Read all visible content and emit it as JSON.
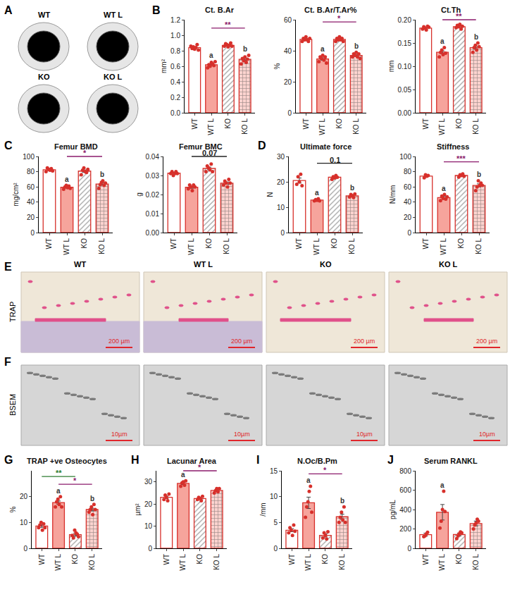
{
  "chart_data": [
    {
      "panel_label": "B",
      "type": "bar",
      "title": "Ct. B.Ar",
      "y_label": "mm²",
      "categories": [
        "WT",
        "WT L",
        "KO",
        "KO L"
      ],
      "values": [
        0.84,
        0.62,
        0.87,
        0.69
      ],
      "errors": [
        0.01,
        0.01,
        0.01,
        0.015
      ],
      "points": [
        [
          0.86,
          0.83,
          0.85,
          0.82,
          0.84,
          0.88,
          0.81
        ],
        [
          0.58,
          0.62,
          0.6,
          0.65,
          0.63,
          0.61,
          0.66
        ],
        [
          0.86,
          0.89,
          0.88,
          0.85,
          0.87,
          0.9,
          0.86
        ],
        [
          0.63,
          0.7,
          0.67,
          0.72,
          0.65,
          0.69,
          0.74
        ]
      ],
      "colors": [
        "#ffffff",
        "#f6a49c",
        "#ffffff",
        "#fbd3cf"
      ],
      "color": "#d7302b",
      "ylim": [
        0,
        1.2
      ],
      "yticks": [
        {
          "value": 0,
          "label": "0.0"
        },
        {
          "value": 0.2,
          "label": "0.2"
        },
        {
          "value": 0.4,
          "label": "0.4"
        },
        {
          "value": 0.6,
          "label": "0.6"
        },
        {
          "value": 0.8,
          "label": "0.8"
        },
        {
          "value": 1.0,
          "label": "1.0"
        },
        {
          "value": 1.2,
          "label": "1.2"
        }
      ],
      "letters": [
        null,
        "a",
        null,
        "b"
      ],
      "comparisons": [
        {
          "from": 1,
          "to": 3,
          "label": "**",
          "color": "#8b1a6b"
        }
      ]
    },
    {
      "type": "bar",
      "title": "Ct. B.Ar/T.Ar%",
      "y_label": "%",
      "categories": [
        "WT",
        "WT L",
        "KO",
        "KO L"
      ],
      "values": [
        47.3,
        34.7,
        47.3,
        37
      ],
      "errors": [
        0.5,
        0.8,
        0.5,
        0.6
      ],
      "points": [
        [
          46,
          48,
          47,
          49,
          47,
          46,
          48
        ],
        [
          33,
          36,
          35,
          37,
          34,
          36,
          32
        ],
        [
          46,
          48,
          47,
          49,
          47,
          48,
          46
        ],
        [
          36,
          38,
          37,
          39,
          36,
          38,
          35
        ]
      ],
      "colors": [
        "#ffffff",
        "#f6a49c",
        "#ffffff",
        "#fbd3cf"
      ],
      "color": "#d7302b",
      "ylim": [
        0,
        60
      ],
      "yticks": [
        0,
        20,
        40,
        60
      ],
      "letters": [
        null,
        "a",
        null,
        "b"
      ],
      "comparisons": [
        {
          "from": 1,
          "to": 3,
          "label": "*",
          "color": "#8b1a6b"
        }
      ]
    },
    {
      "type": "bar",
      "title": "Ct.Th",
      "y_label": "mm",
      "categories": [
        "WT",
        "WT L",
        "KO",
        "KO L"
      ],
      "values": [
        0.182,
        0.13,
        0.185,
        0.14
      ],
      "errors": [
        0.002,
        0.003,
        0.002,
        0.003
      ],
      "points": [
        [
          0.18,
          0.185,
          0.182,
          0.178,
          0.186,
          0.184
        ],
        [
          0.12,
          0.13,
          0.135,
          0.125,
          0.14,
          0.128
        ],
        [
          0.183,
          0.188,
          0.185,
          0.19,
          0.18,
          0.186
        ],
        [
          0.13,
          0.14,
          0.145,
          0.135,
          0.15,
          0.142
        ]
      ],
      "colors": [
        "#ffffff",
        "#f6a49c",
        "#ffffff",
        "#fbd3cf"
      ],
      "color": "#d7302b",
      "ylim": [
        0,
        0.2
      ],
      "yticks": [
        {
          "value": 0,
          "label": "0.00"
        },
        {
          "value": 0.05,
          "label": "0.05"
        },
        {
          "value": 0.1,
          "label": "0.10"
        },
        {
          "value": 0.15,
          "label": "0.15"
        },
        {
          "value": 0.2,
          "label": "0.20"
        }
      ],
      "letters": [
        null,
        "a",
        null,
        "b"
      ],
      "comparisons": [
        {
          "from": 1,
          "to": 3,
          "label": "**",
          "color": "#8b1a6b"
        }
      ]
    },
    {
      "panel_label": "C",
      "type": "bar",
      "title": "Femur BMD",
      "y_label": "mg/cm²",
      "categories": [
        "WT",
        "WT L",
        "KO",
        "KO L"
      ],
      "values": [
        82.5,
        59.5,
        80.8,
        63.7
      ],
      "errors": [
        1,
        1,
        1.5,
        1.5
      ],
      "points": [
        [
          80,
          85,
          83,
          82,
          84,
          81
        ],
        [
          57,
          60,
          62,
          59,
          61,
          58
        ],
        [
          76,
          82,
          85,
          80,
          79,
          83
        ],
        [
          58,
          63,
          66,
          68,
          62,
          65
        ]
      ],
      "colors": [
        "#ffffff",
        "#f6a49c",
        "#ffffff",
        "#fbd3cf"
      ],
      "color": "#d7302b",
      "ylim": [
        0,
        100
      ],
      "yticks": [
        0,
        20,
        40,
        60,
        80,
        100
      ],
      "letters": [
        null,
        "a",
        null,
        "b"
      ],
      "comparisons": [
        {
          "from": 1,
          "to": 3,
          "label": "*",
          "color": "#8b1a6b"
        }
      ]
    },
    {
      "type": "bar",
      "title": "Femur BMC",
      "y_label": "g",
      "categories": [
        "WT",
        "WT L",
        "KO",
        "KO L"
      ],
      "values": [
        0.0312,
        0.0238,
        0.0337,
        0.026
      ],
      "errors": [
        0.0005,
        0.0005,
        0.0007,
        0.0006
      ],
      "points": [
        [
          0.031,
          0.032,
          0.03,
          0.031,
          0.032,
          0.031
        ],
        [
          0.023,
          0.025,
          0.024,
          0.022,
          0.025,
          0.024
        ],
        [
          0.032,
          0.035,
          0.034,
          0.033,
          0.036,
          0.032
        ],
        [
          0.025,
          0.027,
          0.026,
          0.024,
          0.028,
          0.026
        ]
      ],
      "colors": [
        "#ffffff",
        "#f6a49c",
        "#ffffff",
        "#fbd3cf"
      ],
      "color": "#d7302b",
      "ylim": [
        0,
        0.04
      ],
      "yticks": [
        {
          "value": 0,
          "label": "0.00"
        },
        {
          "value": 0.01,
          "label": "0.01"
        },
        {
          "value": 0.02,
          "label": "0.02"
        },
        {
          "value": 0.03,
          "label": "0.03"
        },
        {
          "value": 0.04,
          "label": "0.04"
        }
      ],
      "letters": [
        null,
        null,
        null,
        null
      ],
      "comparisons": [
        {
          "from": 1,
          "to": 3,
          "label": "0.07",
          "color": "#222222"
        }
      ]
    },
    {
      "panel_label": "D",
      "type": "bar",
      "title": "Ultimate force",
      "y_label": "N",
      "categories": [
        "WT",
        "WT L",
        "KO",
        "KO L"
      ],
      "values": [
        20.5,
        12.8,
        21.8,
        14.5
      ],
      "errors": [
        1,
        0.2,
        0.3,
        0.3
      ],
      "points": [
        [
          19,
          22,
          20,
          23,
          18.5
        ],
        [
          12.5,
          13,
          12.7,
          13.3,
          12.5
        ],
        [
          21,
          22,
          21.5,
          22.5,
          21.8
        ],
        [
          14,
          15,
          14.5,
          13.8,
          15.2
        ]
      ],
      "colors": [
        "#ffffff",
        "#f6a49c",
        "#ffffff",
        "#fbd3cf"
      ],
      "color": "#d7302b",
      "ylim": [
        0,
        30
      ],
      "yticks": [
        0,
        10,
        20,
        30
      ],
      "letters": [
        null,
        "a",
        null,
        "b"
      ],
      "comparisons": [
        {
          "from": 1,
          "to": 3,
          "label": "0.1",
          "color": "#222222"
        }
      ]
    },
    {
      "type": "bar",
      "title": "Stiffness",
      "y_label": "N/mm",
      "categories": [
        "WT",
        "WT L",
        "KO",
        "KO L"
      ],
      "values": [
        74.25,
        46,
        75,
        62
      ],
      "errors": [
        1,
        1.5,
        0.8,
        2
      ],
      "points": [
        [
          72,
          76,
          74,
          75
        ],
        [
          42,
          48,
          45,
          50,
          44,
          47
        ],
        [
          73,
          76,
          75,
          77,
          74
        ],
        [
          55,
          60,
          68,
          62,
          65,
          62
        ]
      ],
      "colors": [
        "#ffffff",
        "#f6a49c",
        "#ffffff",
        "#fbd3cf"
      ],
      "color": "#d7302b",
      "ylim": [
        0,
        100
      ],
      "yticks": [
        0,
        20,
        40,
        60,
        80,
        100
      ],
      "letters": [
        null,
        "a",
        null,
        "b"
      ],
      "comparisons": [
        {
          "from": 1,
          "to": 3,
          "label": "***",
          "color": "#8b1a6b"
        }
      ]
    },
    {
      "panel_label": "G",
      "type": "bar",
      "title": "TRAP +ve Osteocytes",
      "y_label": "%",
      "categories": [
        "WT",
        "WT L",
        "KO",
        "KO L"
      ],
      "values": [
        8.6,
        17.7,
        5.3,
        15
      ],
      "errors": [
        0.5,
        0.6,
        0.5,
        0.5
      ],
      "points": [
        [
          8,
          9,
          10,
          7,
          9.5,
          8
        ],
        [
          16,
          18,
          19,
          17,
          20,
          16
        ],
        [
          5,
          4,
          7,
          6,
          5.5,
          4.5
        ],
        [
          14,
          15,
          16,
          13,
          17,
          15
        ]
      ],
      "colors": [
        "#ffffff",
        "#f6a49c",
        "#ffffff",
        "#fbd3cf"
      ],
      "color": "#d7302b",
      "ylim": [
        0,
        30
      ],
      "yticks": [
        0,
        10,
        20
      ],
      "letters": [
        null,
        "a",
        null,
        "b"
      ],
      "comparisons": [
        {
          "from": 1,
          "to": 3,
          "label": "*",
          "color": "#8b1a6b"
        },
        {
          "from": 0,
          "to": 2,
          "label": "**",
          "color": "#2e7d32"
        }
      ]
    },
    {
      "panel_label": "H",
      "type": "bar",
      "title": "Lacunar Area",
      "y_label": "µm²",
      "categories": [
        "WT",
        "WT L",
        "KO",
        "KO L"
      ],
      "values": [
        23,
        29.3,
        22.5,
        26.1
      ],
      "errors": [
        0.6,
        0.5,
        0.4,
        0.4
      ],
      "points": [
        [
          22,
          24,
          23,
          21.5,
          24.5
        ],
        [
          28,
          29.5,
          30,
          28.5,
          30.5
        ],
        [
          22,
          23,
          22.5,
          21.5,
          23.5
        ],
        [
          25,
          26,
          27,
          25.5,
          27
        ]
      ],
      "colors": [
        "#ffffff",
        "#f6a49c",
        "#ffffff",
        "#fbd3cf"
      ],
      "color": "#d7302b",
      "ylim": [
        0,
        35
      ],
      "yticks": [
        0,
        10,
        20,
        30
      ],
      "letters": [
        null,
        "a",
        null,
        null
      ],
      "comparisons": [
        {
          "from": 1,
          "to": 3,
          "label": "*",
          "color": "#8b1a6b"
        }
      ]
    },
    {
      "panel_label": "I",
      "type": "bar",
      "title": "N.Oc/B.Pm",
      "y_label": "/mm",
      "categories": [
        "WT",
        "WT L",
        "KO",
        "KO L"
      ],
      "values": [
        3.5,
        8.8,
        2.5,
        6.1
      ],
      "errors": [
        0.3,
        1.1,
        0.3,
        0.5
      ],
      "points": [
        [
          3,
          4,
          3.5,
          2.5,
          4.5,
          3.3
        ],
        [
          6,
          8,
          9,
          11,
          12,
          7
        ],
        [
          2,
          3,
          2.5,
          1.8,
          3.2
        ],
        [
          5,
          6,
          7,
          5.5,
          8,
          5
        ]
      ],
      "colors": [
        "#ffffff",
        "#f6a49c",
        "#ffffff",
        "#fbd3cf"
      ],
      "color": "#d7302b",
      "ylim": [
        0,
        15
      ],
      "yticks": [
        0,
        5,
        10,
        15
      ],
      "letters": [
        null,
        "a",
        null,
        "b"
      ],
      "comparisons": [
        {
          "from": 1,
          "to": 3,
          "label": "*",
          "color": "#8b1a6b"
        }
      ]
    },
    {
      "panel_label": "J",
      "type": "bar",
      "title": "Serum RANKL",
      "y_label": "pg/mL",
      "categories": [
        "WT",
        "WT L",
        "KO",
        "KO L"
      ],
      "values": [
        141,
        372,
        142,
        256
      ],
      "errors": [
        15,
        80,
        15,
        25
      ],
      "points": [
        [
          120,
          130,
          150,
          165
        ],
        [
          210,
          280,
          400,
          590,
          380
        ],
        [
          100,
          130,
          150,
          170,
          160
        ],
        [
          200,
          240,
          260,
          300,
          280
        ]
      ],
      "colors": [
        "#ffffff",
        "#f6a49c",
        "#ffffff",
        "#fbd3cf"
      ],
      "color": "#d7302b",
      "ylim": [
        0,
        800
      ],
      "yticks": [
        0,
        200,
        400,
        600,
        800
      ],
      "letters": [
        null,
        "a",
        null,
        null
      ],
      "comparisons": []
    }
  ],
  "image_panels": {
    "A": {
      "label": "A",
      "images": [
        "WT",
        "WT L",
        "KO",
        "KO L"
      ]
    },
    "E": {
      "label": "E",
      "row_label": "TRAP",
      "columns": [
        "WT",
        "WT L",
        "KO",
        "KO L"
      ],
      "scale_bar": "200 µm"
    },
    "F": {
      "label": "F",
      "row_label": "BSEM",
      "columns": [
        "WT",
        "WT L",
        "KO",
        "KO L"
      ],
      "scale_bar": "10µm"
    }
  }
}
